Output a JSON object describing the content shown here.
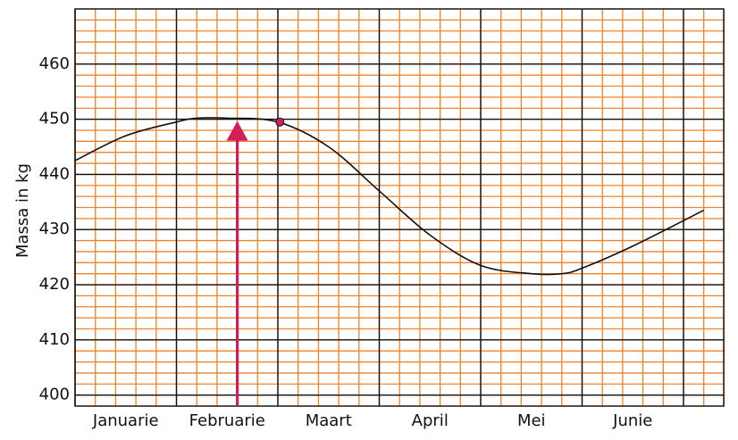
{
  "chart_data": {
    "type": "line",
    "title": "",
    "xlabel": "",
    "ylabel": "Massa in kg",
    "ylim": [
      398,
      470
    ],
    "yticks": [
      400,
      410,
      420,
      430,
      440,
      450,
      460
    ],
    "categories": [
      "Januarie",
      "Februarie",
      "Maart",
      "April",
      "Mei",
      "Junie"
    ],
    "grid": true,
    "series": [
      {
        "x": [
          0,
          0.5,
          1.0,
          1.2,
          1.5,
          2.0,
          2.5,
          3.0,
          3.5,
          4.0,
          4.5,
          4.8,
          5.0,
          5.5,
          6.2
        ],
        "y": [
          442.5,
          447,
          449.5,
          450.2,
          450.2,
          449.5,
          445,
          437,
          429,
          423.5,
          422,
          422,
          423,
          427,
          433.5
        ]
      }
    ],
    "annotations": [
      {
        "type": "arrow",
        "x": 1.6,
        "from_y": 398,
        "to_y": 450
      },
      {
        "type": "point",
        "x": 2.02,
        "y": 449.5
      }
    ],
    "colors": {
      "minor_grid": "#f0822a",
      "major_grid": "#111111",
      "line": "#111111",
      "arrow": "#d21f5a"
    }
  }
}
